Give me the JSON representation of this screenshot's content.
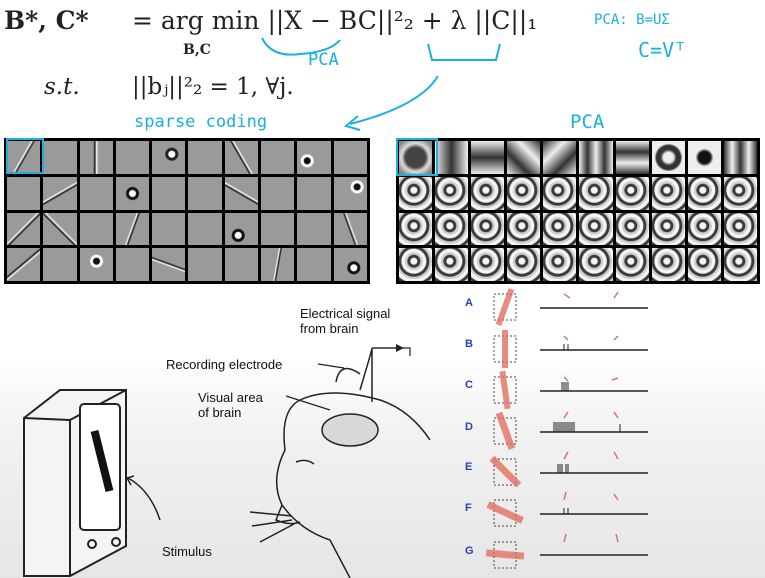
{
  "equation": {
    "lhs": "B*, C*",
    "main": "= arg min ||X − BC||²₂ + λ ||C||₁",
    "argmin_sub": "B,C",
    "constraint_label": "s.t.",
    "constraint": "||bⱼ||²₂ = 1, ∀j."
  },
  "annotations": {
    "pca_under_term": "PCA",
    "pca_top_right": "PCA: B=UΣ",
    "c_equals": "C=Vᵀ",
    "sparse_coding": "sparse coding",
    "pca_title": "PCA"
  },
  "diagram": {
    "electrical_signal": "Electrical signal\nfrom brain",
    "recording_electrode": "Recording electrode",
    "visual_area": "Visual area\nof brain",
    "stimulus": "Stimulus"
  },
  "trials": [
    "A",
    "B",
    "C",
    "D",
    "E",
    "F",
    "G"
  ],
  "colors": {
    "annotation": "#1ab0e0",
    "letters": "#2a3fb0",
    "bar": "#e07060"
  }
}
